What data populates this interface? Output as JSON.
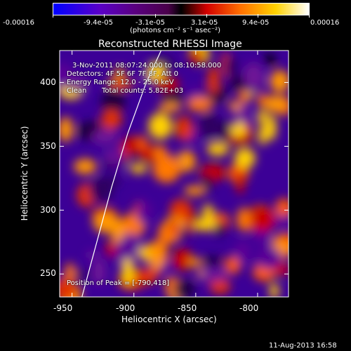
{
  "chart_data": {
    "type": "heatmap",
    "title": "Reconstructed RHESSI Image",
    "xlabel": "Heliocentric X (arcsec)",
    "ylabel": "Heliocentric Y (arcsec)",
    "xlim": [
      -960,
      -775
    ],
    "ylim": [
      232,
      425
    ],
    "x_ticks": [
      "-950",
      "-900",
      "-850",
      "-800"
    ],
    "x_tick_values": [
      -950,
      -900,
      -850,
      -800
    ],
    "y_ticks": [
      "250",
      "300",
      "350",
      "400"
    ],
    "y_tick_values": [
      250,
      300,
      350,
      400
    ],
    "colorbar": {
      "ticks": [
        "-0.00016",
        "-9.4e-05",
        "-3.1e-05",
        "3.1e-05",
        "9.4e-05",
        "0.00016"
      ],
      "tick_values": [
        -0.00016,
        -9.4e-05,
        -3.1e-05,
        3.1e-05,
        9.4e-05,
        0.00016
      ],
      "range": [
        -0.00016,
        0.00016
      ],
      "unit": "(photons cm⁻² s⁻¹ asec⁻²)",
      "colors": [
        "#0000ff",
        "#5a00c8",
        "#5a0080",
        "#4a004a",
        "#000000",
        "#d20000",
        "#ff6e00",
        "#ffd200",
        "#ffffff"
      ]
    },
    "annotations": {
      "time_range": "3-Nov-2011 08:07:24.000 to 08:10:58.000",
      "detectors": "Detectors: 4F 5F 6F 7F 8F, Att 0",
      "energy": "Energy Range: 12.0 - 25.0 keV",
      "method": "Clean",
      "counts": "Total counts: 5.82E+03",
      "peak": "Position of Peak = [-790,418]"
    },
    "footer_date": "11-Aug-2013 16:58",
    "limb_curve": [
      [
        -942,
        232
      ],
      [
        -930,
        275
      ],
      [
        -918,
        318
      ],
      [
        -905,
        360
      ],
      [
        -890,
        400
      ],
      [
        -878,
        425
      ]
    ],
    "peak_position": [
      -790,
      418
    ]
  }
}
